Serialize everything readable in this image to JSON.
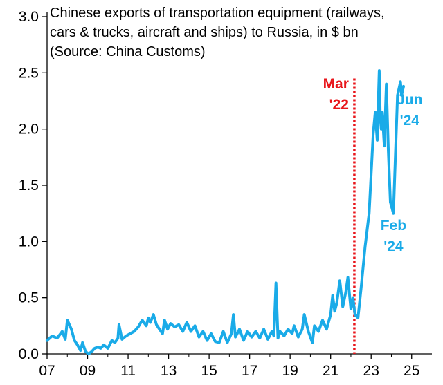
{
  "chart_data": {
    "type": "line",
    "title_lines": [
      "Chinese exports of transportation equipment (railways,",
      "cars & trucks, aircraft and ships) to Russia, in $ bn",
      "(Source: China Customs)"
    ],
    "xlabel": "",
    "ylabel": "",
    "xlim": [
      2007,
      2026
    ],
    "ylim": [
      0,
      3.0
    ],
    "x_ticks": [
      2007,
      2009,
      2011,
      2013,
      2015,
      2017,
      2019,
      2021,
      2023,
      2025
    ],
    "x_tick_labels": [
      "07",
      "09",
      "11",
      "13",
      "15",
      "17",
      "19",
      "21",
      "23",
      "25"
    ],
    "y_ticks": [
      0,
      0.5,
      1.0,
      1.5,
      2.0,
      2.5,
      3.0
    ],
    "y_tick_labels": [
      "0.0",
      "0.5",
      "1.0",
      "1.5",
      "2.0",
      "2.5",
      "3.0"
    ],
    "series": [
      {
        "name": "Chinese exports of transportation equipment to Russia ($ bn)",
        "color": "#1aabe8",
        "x": [
          2007.0,
          2007.25,
          2007.5,
          2007.75,
          2007.9,
          2008.0,
          2008.2,
          2008.35,
          2008.5,
          2008.65,
          2008.75,
          2008.9,
          2009.05,
          2009.2,
          2009.35,
          2009.5,
          2009.65,
          2009.8,
          2010.0,
          2010.2,
          2010.35,
          2010.5,
          2010.55,
          2010.7,
          2010.9,
          2011.1,
          2011.3,
          2011.5,
          2011.7,
          2011.9,
          2012.0,
          2012.1,
          2012.25,
          2012.4,
          2012.55,
          2012.7,
          2012.8,
          2012.95,
          2013.1,
          2013.3,
          2013.5,
          2013.7,
          2013.9,
          2014.1,
          2014.3,
          2014.5,
          2014.7,
          2014.9,
          2015.1,
          2015.3,
          2015.5,
          2015.7,
          2015.9,
          2016.1,
          2016.2,
          2016.3,
          2016.5,
          2016.7,
          2016.9,
          2017.1,
          2017.3,
          2017.5,
          2017.7,
          2017.9,
          2018.1,
          2018.2,
          2018.3,
          2018.4,
          2018.5,
          2018.7,
          2018.9,
          2019.1,
          2019.2,
          2019.4,
          2019.6,
          2019.7,
          2019.9,
          2020.1,
          2020.2,
          2020.4,
          2020.6,
          2020.8,
          2021.0,
          2021.1,
          2021.2,
          2021.3,
          2021.45,
          2021.6,
          2021.75,
          2021.85,
          2022.0,
          2022.1,
          2022.2,
          2022.35,
          2022.5,
          2022.7,
          2022.9,
          2023.0,
          2023.1,
          2023.2,
          2023.3,
          2023.4,
          2023.45,
          2023.5,
          2023.55,
          2023.65,
          2023.75,
          2023.85,
          2023.95,
          2024.1,
          2024.3,
          2024.45,
          2024.5,
          2024.6
        ],
        "values": [
          0.12,
          0.16,
          0.14,
          0.2,
          0.13,
          0.3,
          0.22,
          0.12,
          0.08,
          0.03,
          0.1,
          0.02,
          0.0,
          0.02,
          0.05,
          0.06,
          0.05,
          0.08,
          0.05,
          0.12,
          0.1,
          0.14,
          0.26,
          0.13,
          0.16,
          0.18,
          0.2,
          0.24,
          0.3,
          0.25,
          0.32,
          0.28,
          0.35,
          0.26,
          0.22,
          0.18,
          0.3,
          0.22,
          0.27,
          0.24,
          0.26,
          0.2,
          0.28,
          0.2,
          0.25,
          0.15,
          0.2,
          0.12,
          0.18,
          0.11,
          0.1,
          0.2,
          0.1,
          0.18,
          0.35,
          0.15,
          0.22,
          0.12,
          0.2,
          0.15,
          0.2,
          0.14,
          0.22,
          0.13,
          0.2,
          0.16,
          0.63,
          0.14,
          0.2,
          0.16,
          0.22,
          0.18,
          0.25,
          0.15,
          0.22,
          0.35,
          0.2,
          0.1,
          0.25,
          0.2,
          0.3,
          0.22,
          0.35,
          0.52,
          0.38,
          0.45,
          0.65,
          0.42,
          0.55,
          0.68,
          0.4,
          0.5,
          0.35,
          0.32,
          0.58,
          0.95,
          1.25,
          1.6,
          1.95,
          2.15,
          1.9,
          2.52,
          2.1,
          2.0,
          2.15,
          1.85,
          2.4,
          1.8,
          1.35,
          1.25,
          2.3,
          2.42,
          2.3,
          2.38
        ]
      }
    ],
    "annotations": [
      {
        "type": "vline",
        "x": 2022.17,
        "color": "#e8161b",
        "style": "dotted",
        "label_lines": [
          "Mar",
          "'22"
        ]
      },
      {
        "type": "text",
        "label_lines": [
          "Feb",
          "'24"
        ],
        "anchor_x": 2024.1,
        "anchor_y": 1.1,
        "color": "#1aabe8"
      },
      {
        "type": "text",
        "label_lines": [
          "Jun",
          "'24"
        ],
        "anchor_x": 2024.9,
        "anchor_y": 2.22,
        "color": "#1aabe8"
      }
    ]
  }
}
